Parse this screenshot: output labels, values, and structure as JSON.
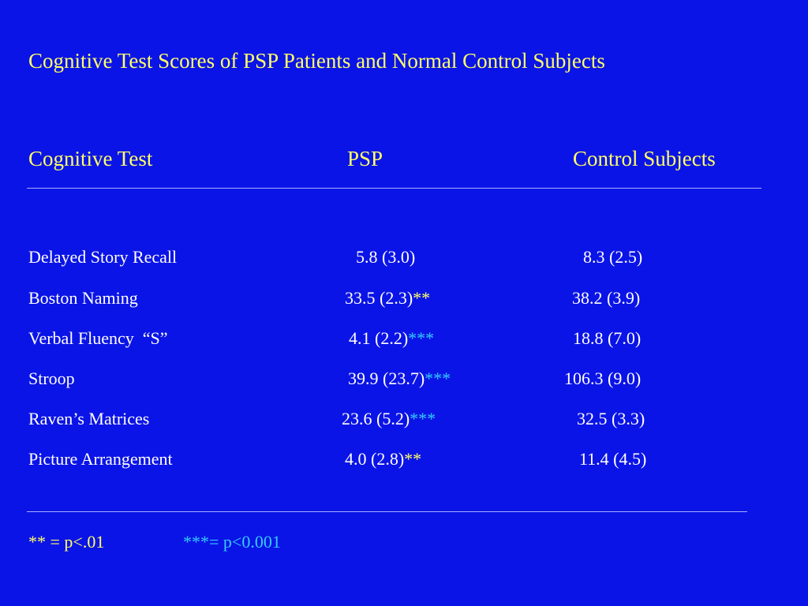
{
  "title": "Cognitive Test Scores of PSP Patients and Normal Control Subjects",
  "headers": {
    "test": "Cognitive Test",
    "psp": "PSP",
    "control": "Control Subjects"
  },
  "rows": [
    {
      "test": "Delayed Story Recall",
      "psp": "5.8 (3.0)",
      "psp_sig": "",
      "control": "8.3 (2.5)"
    },
    {
      "test": "Boston Naming",
      "psp": "33.5 (2.3)",
      "psp_sig": "**",
      "control": "38.2 (3.9)"
    },
    {
      "test": "Verbal Fluency  “S”",
      "psp": "4.1 (2.2)",
      "psp_sig": "***",
      "control": "18.8 (7.0)"
    },
    {
      "test": "Stroop",
      "psp": "39.9 (23.7)",
      "psp_sig": "***",
      "control": "106.3 (9.0)"
    },
    {
      "test": "Raven’s Matrices",
      "psp": "23.6 (5.2)",
      "psp_sig": "***",
      "control": "32.5 (3.3)"
    },
    {
      "test": "Picture Arrangement",
      "psp": "4.0 (2.8)",
      "psp_sig": "**",
      "control": "11.4 (4.5)"
    }
  ],
  "footnotes": {
    "p01": "** = p<.01",
    "p001": "***= p<0.001"
  },
  "colors": {
    "background": "#0b14e6",
    "heading": "#ffff66",
    "body_text": "#ffffff",
    "sig_p01": "#ffff66",
    "sig_p001": "#33ccff"
  }
}
